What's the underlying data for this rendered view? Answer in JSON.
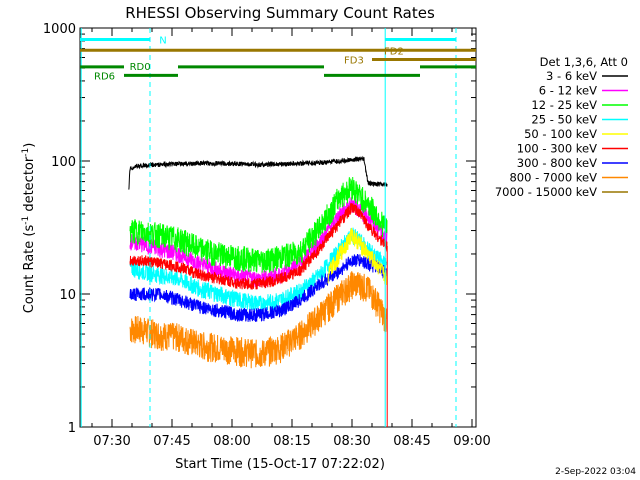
{
  "chart_data": {
    "type": "line",
    "title": "RHESSI Observing Summary Count Rates",
    "xlabel": "Start Time (15-Oct-17 07:22:02)",
    "ylabel_main": "Count Rate (s",
    "ylabel_sup1": "-1",
    "ylabel_mid": " detector",
    "ylabel_sup2": "-1",
    "ylabel_end": ")",
    "ylabel_full": "Count Rate (s-1 detector-1)",
    "yscale": "log",
    "xlim_minutes": [
      0,
      99
    ],
    "ylim": [
      1,
      1000
    ],
    "x_ticks": [
      {
        "minutes": 8,
        "label": "07:30"
      },
      {
        "minutes": 23,
        "label": "07:45"
      },
      {
        "minutes": 38,
        "label": "08:00"
      },
      {
        "minutes": 53,
        "label": "08:15"
      },
      {
        "minutes": 68,
        "label": "08:30"
      },
      {
        "minutes": 83,
        "label": "08:45"
      },
      {
        "minutes": 98,
        "label": "09:00"
      }
    ],
    "y_ticks": [
      {
        "value": 1,
        "label": "1"
      },
      {
        "value": 10,
        "label": "10"
      },
      {
        "value": 100,
        "label": "100"
      },
      {
        "value": 1000,
        "label": "1000"
      }
    ],
    "legend_title": "Det 1,3,6, Att 0",
    "legend_position": "right, outside",
    "grid": false,
    "series": [
      {
        "name": "3 - 6 keV",
        "color": "#000000",
        "points": [
          [
            12.2,
            60
          ],
          [
            12.5,
            88
          ],
          [
            15,
            92
          ],
          [
            20,
            94
          ],
          [
            25,
            95
          ],
          [
            30,
            96
          ],
          [
            35,
            96
          ],
          [
            40,
            95
          ],
          [
            45,
            94
          ],
          [
            50,
            95
          ],
          [
            55,
            96
          ],
          [
            60,
            97
          ],
          [
            65,
            100
          ],
          [
            69,
            103
          ],
          [
            71,
            103
          ],
          [
            72,
            68
          ],
          [
            75,
            67
          ],
          [
            76.8,
            66
          ]
        ]
      },
      {
        "name": "6 - 12 keV",
        "color": "#ff00ff",
        "points": [
          [
            12.5,
            25
          ],
          [
            15,
            24
          ],
          [
            20,
            22
          ],
          [
            25,
            20
          ],
          [
            30,
            17
          ],
          [
            35,
            15
          ],
          [
            40,
            13.5
          ],
          [
            45,
            13
          ],
          [
            50,
            14
          ],
          [
            55,
            17
          ],
          [
            60,
            25
          ],
          [
            65,
            40
          ],
          [
            68,
            48
          ],
          [
            70,
            43
          ],
          [
            72,
            38
          ],
          [
            74,
            32
          ],
          [
            76,
            28
          ],
          [
            76.8,
            27
          ]
        ]
      },
      {
        "name": "12 - 25 keV",
        "color": "#00ff00",
        "points": [
          [
            12.5,
            30
          ],
          [
            15,
            30
          ],
          [
            20,
            28
          ],
          [
            25,
            26
          ],
          [
            30,
            22
          ],
          [
            35,
            20
          ],
          [
            40,
            19
          ],
          [
            45,
            18
          ],
          [
            50,
            19
          ],
          [
            55,
            21
          ],
          [
            60,
            32
          ],
          [
            65,
            55
          ],
          [
            68,
            65
          ],
          [
            70,
            55
          ],
          [
            72,
            48
          ],
          [
            74,
            40
          ],
          [
            76,
            33
          ],
          [
            76.8,
            31
          ]
        ]
      },
      {
        "name": "25 - 50 keV",
        "color": "#00ffff",
        "points": [
          [
            12.5,
            16
          ],
          [
            15,
            15
          ],
          [
            20,
            14
          ],
          [
            25,
            13
          ],
          [
            30,
            11
          ],
          [
            35,
            10
          ],
          [
            40,
            9
          ],
          [
            45,
            8.5
          ],
          [
            50,
            9
          ],
          [
            55,
            10.5
          ],
          [
            60,
            14
          ],
          [
            65,
            22
          ],
          [
            68,
            28
          ],
          [
            70,
            25
          ],
          [
            72,
            22
          ],
          [
            74,
            19
          ],
          [
            76,
            17
          ],
          [
            76.8,
            16
          ]
        ]
      },
      {
        "name": "50 - 100 keV",
        "color": "#ffff00",
        "points": [
          [
            62,
            14
          ],
          [
            65,
            20
          ],
          [
            68,
            28
          ],
          [
            70,
            24
          ],
          [
            72,
            20
          ],
          [
            74,
            17
          ],
          [
            76,
            14
          ],
          [
            76.8,
            13
          ]
        ]
      },
      {
        "name": "100 - 300 keV",
        "color": "#ff0000",
        "points": [
          [
            12.5,
            18
          ],
          [
            15,
            18
          ],
          [
            20,
            17
          ],
          [
            25,
            16
          ],
          [
            30,
            14
          ],
          [
            35,
            13
          ],
          [
            40,
            12
          ],
          [
            45,
            12
          ],
          [
            50,
            13
          ],
          [
            55,
            15
          ],
          [
            60,
            22
          ],
          [
            65,
            35
          ],
          [
            68,
            45
          ],
          [
            70,
            40
          ],
          [
            72,
            33
          ],
          [
            74,
            28
          ],
          [
            76,
            24
          ],
          [
            76.8,
            23
          ]
        ]
      },
      {
        "name": "300 - 800 keV",
        "color": "#0000ff",
        "points": [
          [
            12.5,
            10
          ],
          [
            15,
            10
          ],
          [
            20,
            10
          ],
          [
            25,
            9
          ],
          [
            30,
            8
          ],
          [
            35,
            7.5
          ],
          [
            40,
            7
          ],
          [
            45,
            7
          ],
          [
            50,
            7.5
          ],
          [
            55,
            9
          ],
          [
            60,
            12
          ],
          [
            65,
            15
          ],
          [
            68,
            18
          ],
          [
            70,
            18
          ],
          [
            72,
            17
          ],
          [
            74,
            16
          ],
          [
            76,
            15
          ],
          [
            76.8,
            14
          ]
        ]
      },
      {
        "name": "800 - 7000 keV",
        "color": "#ff8800",
        "points": [
          [
            12.5,
            5.5
          ],
          [
            15,
            5.5
          ],
          [
            20,
            5
          ],
          [
            25,
            4.8
          ],
          [
            30,
            4.2
          ],
          [
            35,
            4
          ],
          [
            40,
            3.8
          ],
          [
            45,
            3.6
          ],
          [
            50,
            4
          ],
          [
            55,
            5
          ],
          [
            60,
            7
          ],
          [
            65,
            10
          ],
          [
            68,
            12
          ],
          [
            70,
            12
          ],
          [
            72,
            11
          ],
          [
            74,
            9
          ],
          [
            76,
            7
          ],
          [
            76.8,
            6
          ]
        ]
      },
      {
        "name": "7000 - 15000 keV",
        "color": "#997700",
        "points": []
      }
    ]
  },
  "annotations": {
    "N_label": "N",
    "N_color": "#00ffff",
    "FD2_label": "FD2",
    "FD3_label": "FD3",
    "RD0_label": "RD0",
    "RD6_label": "RD6",
    "FD_color": "#997700",
    "RD_color": "#008800"
  },
  "footer": {
    "timestamp": "2-Sep-2022 03:04"
  }
}
